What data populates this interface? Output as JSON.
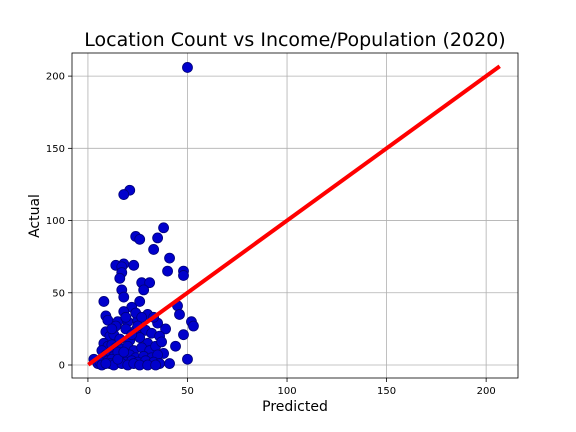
{
  "chart_data": {
    "type": "scatter",
    "title": "Location Count vs Income/Population (2020)",
    "xlabel": "Predicted",
    "ylabel": "Actual",
    "xlim": [
      -8,
      216
    ],
    "ylim": [
      -9,
      216
    ],
    "xticks": [
      0,
      50,
      100,
      150,
      200
    ],
    "yticks": [
      0,
      50,
      100,
      150,
      200
    ],
    "grid": true,
    "series": [
      {
        "color": "#0000cc",
        "marker_edge_color": "#00007a",
        "points": [
          [
            50,
            206
          ],
          [
            21,
            121
          ],
          [
            18,
            118
          ],
          [
            38,
            95
          ],
          [
            35,
            88
          ],
          [
            24,
            89
          ],
          [
            26,
            87
          ],
          [
            33,
            80
          ],
          [
            41,
            74
          ],
          [
            48,
            65
          ],
          [
            48,
            62
          ],
          [
            40,
            65
          ],
          [
            14,
            69
          ],
          [
            18,
            70
          ],
          [
            17,
            68
          ],
          [
            23,
            69
          ],
          [
            17,
            64
          ],
          [
            16,
            60
          ],
          [
            27,
            57
          ],
          [
            31,
            57
          ],
          [
            28,
            52
          ],
          [
            17,
            52
          ],
          [
            18,
            47
          ],
          [
            8,
            44
          ],
          [
            26,
            44
          ],
          [
            45,
            41
          ],
          [
            30,
            35
          ],
          [
            46,
            35
          ],
          [
            9,
            34
          ],
          [
            10,
            31
          ],
          [
            15,
            30
          ],
          [
            20,
            30
          ],
          [
            25,
            31
          ],
          [
            35,
            29
          ],
          [
            52,
            30
          ],
          [
            53,
            27
          ],
          [
            39,
            25
          ],
          [
            22,
            40
          ],
          [
            18,
            37
          ],
          [
            24,
            36
          ],
          [
            27,
            33
          ],
          [
            33,
            33
          ],
          [
            14,
            27
          ],
          [
            19,
            25
          ],
          [
            24,
            24
          ],
          [
            29,
            24
          ],
          [
            32,
            22
          ],
          [
            36,
            20
          ],
          [
            48,
            21
          ],
          [
            9,
            23
          ],
          [
            11,
            20
          ],
          [
            13,
            21
          ],
          [
            16,
            18
          ],
          [
            21,
            17
          ],
          [
            26,
            19
          ],
          [
            30,
            15
          ],
          [
            8,
            15
          ],
          [
            10,
            13
          ],
          [
            12,
            14
          ],
          [
            14,
            12
          ],
          [
            17,
            11
          ],
          [
            20,
            13
          ],
          [
            23,
            10
          ],
          [
            27,
            12
          ],
          [
            31,
            10
          ],
          [
            34,
            13
          ],
          [
            38,
            8
          ],
          [
            44,
            13
          ],
          [
            7,
            10
          ],
          [
            9,
            7
          ],
          [
            11,
            8
          ],
          [
            13,
            6
          ],
          [
            15,
            9
          ],
          [
            18,
            6
          ],
          [
            21,
            7
          ],
          [
            24,
            5
          ],
          [
            28,
            6
          ],
          [
            32,
            5
          ],
          [
            35,
            7
          ],
          [
            8,
            4
          ],
          [
            10,
            3
          ],
          [
            12,
            4
          ],
          [
            14,
            2
          ],
          [
            16,
            3
          ],
          [
            19,
            2
          ],
          [
            22,
            3
          ],
          [
            25,
            2
          ],
          [
            29,
            3
          ],
          [
            33,
            2
          ],
          [
            36,
            1
          ],
          [
            41,
            1
          ],
          [
            50,
            4
          ],
          [
            3,
            4
          ],
          [
            5,
            1
          ],
          [
            6,
            2
          ],
          [
            11,
            1
          ],
          [
            13,
            0
          ],
          [
            17,
            1
          ],
          [
            20,
            0
          ],
          [
            23,
            1
          ],
          [
            26,
            0
          ],
          [
            30,
            0
          ],
          [
            34,
            0
          ],
          [
            7,
            0
          ],
          [
            9,
            1
          ],
          [
            15,
            4
          ],
          [
            18,
            9
          ],
          [
            22,
            21
          ],
          [
            12,
            25
          ],
          [
            19,
            33
          ],
          [
            25,
            27
          ],
          [
            37,
            16
          ]
        ]
      }
    ],
    "fit_line": {
      "color": "#ff0000",
      "points": [
        [
          1,
          1
        ],
        [
          206,
          206
        ]
      ]
    }
  }
}
